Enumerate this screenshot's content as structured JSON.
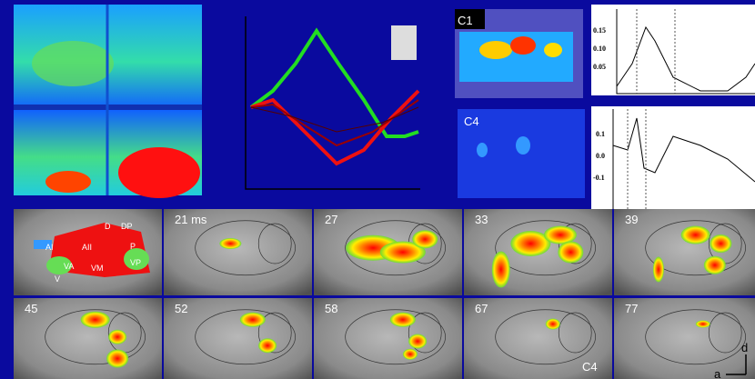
{
  "panels": {
    "top_label": "C1",
    "bottom_label": "C4"
  },
  "traces": [
    {
      "yticks": [
        "0.15",
        "0.10",
        "0.05"
      ]
    },
    {
      "yticks": [
        "0.1",
        "0.0",
        "-0.1"
      ]
    }
  ],
  "map_regions": [
    "D",
    "DP",
    "AI",
    "AII",
    "P",
    "VA",
    "VM",
    "VP",
    "V"
  ],
  "frames": [
    "21 ms",
    "27",
    "33",
    "39",
    "45",
    "52",
    "58",
    "67",
    "77"
  ],
  "corner_label": "C4",
  "orientation": {
    "dorsal": "d",
    "anterior": "a"
  }
}
